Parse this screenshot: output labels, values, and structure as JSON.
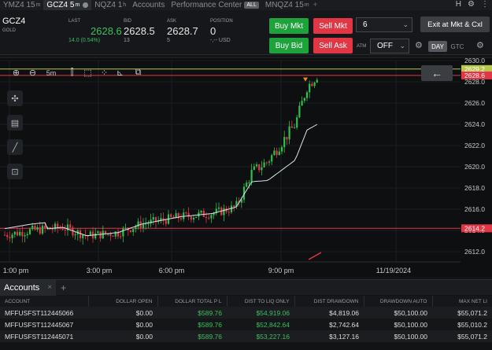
{
  "tabs": [
    {
      "label": "YMZ4 15",
      "sup": "m",
      "active": false
    },
    {
      "label": "GCZ4 5",
      "sup": "m",
      "active": true
    },
    {
      "label": "NQZ4 1",
      "sup": "h",
      "active": false
    },
    {
      "label": "Accounts",
      "active": false
    },
    {
      "label": "Performance Center",
      "badge": "ALL",
      "active": false
    },
    {
      "label": "MNQZ4 15",
      "sup": "m",
      "active": false
    }
  ],
  "tab_right": {
    "h": "H",
    "gear": "⚙",
    "more": "⋮"
  },
  "quote": {
    "symbol": "GCZ4",
    "subtitle": "GOLD",
    "last_label": "LAST",
    "last_value": "2628.6",
    "last_change": "14.0 (0.54%)",
    "bid_label": "BID",
    "bid_value": "2628.5",
    "bid_size": "13",
    "ask_label": "ASK",
    "ask_value": "2628.7",
    "ask_size": "5",
    "position_label": "POSITION",
    "position_value": "0",
    "position_sub": "-,-- USD"
  },
  "order": {
    "buy_mkt": "Buy Mkt",
    "sell_mkt": "Sell Mkt",
    "buy_bid": "Buy Bid",
    "sell_ask": "Sell Ask",
    "quantity": "6",
    "exit": "Exit at Mkt & Cxl",
    "atm_label": "ATM",
    "atm_value": "OFF",
    "day": "DAY",
    "gtc": "GTC"
  },
  "chart": {
    "interval": "5m",
    "y_ticks": [
      "2630.0",
      "2628.0",
      "2626.0",
      "2624.0",
      "2622.0",
      "2620.0",
      "2618.0",
      "2616.0",
      "2614.0",
      "2612.0"
    ],
    "price_markers": [
      {
        "label": "2629.2",
        "color": "#b9c84a"
      },
      {
        "label": "2628.6",
        "color": "#e23645"
      },
      {
        "label": "2614.2",
        "color": "#e23645"
      }
    ],
    "x_ticks": [
      "1:00 pm",
      "3:00 pm",
      "6:00 pm",
      "9:00 pm",
      "11/19/2024"
    ]
  },
  "accounts": {
    "tab_label": "Accounts",
    "columns": [
      "ACCOUNT",
      "DOLLAR OPEN",
      "DOLLAR TOTAL P L",
      "DIST TO LIQ ONLY",
      "DIST DRAWDOWN",
      "DRAWDOWN AUTO",
      "MAX NET LI"
    ],
    "rows": [
      [
        "MFFUSFST112445066",
        "$0.00",
        "$589.76",
        "$54,919.06",
        "$4,819.06",
        "$50,100.00",
        "$55,071.2"
      ],
      [
        "MFFUSFST112445067",
        "$0.00",
        "$589.76",
        "$52,842.64",
        "$2,742.64",
        "$50,100.00",
        "$55,010.2"
      ],
      [
        "MFFUSFST112445071",
        "$0.00",
        "$589.76",
        "$53,227.16",
        "$3,127.16",
        "$50,100.00",
        "$55,071.2"
      ]
    ]
  }
}
